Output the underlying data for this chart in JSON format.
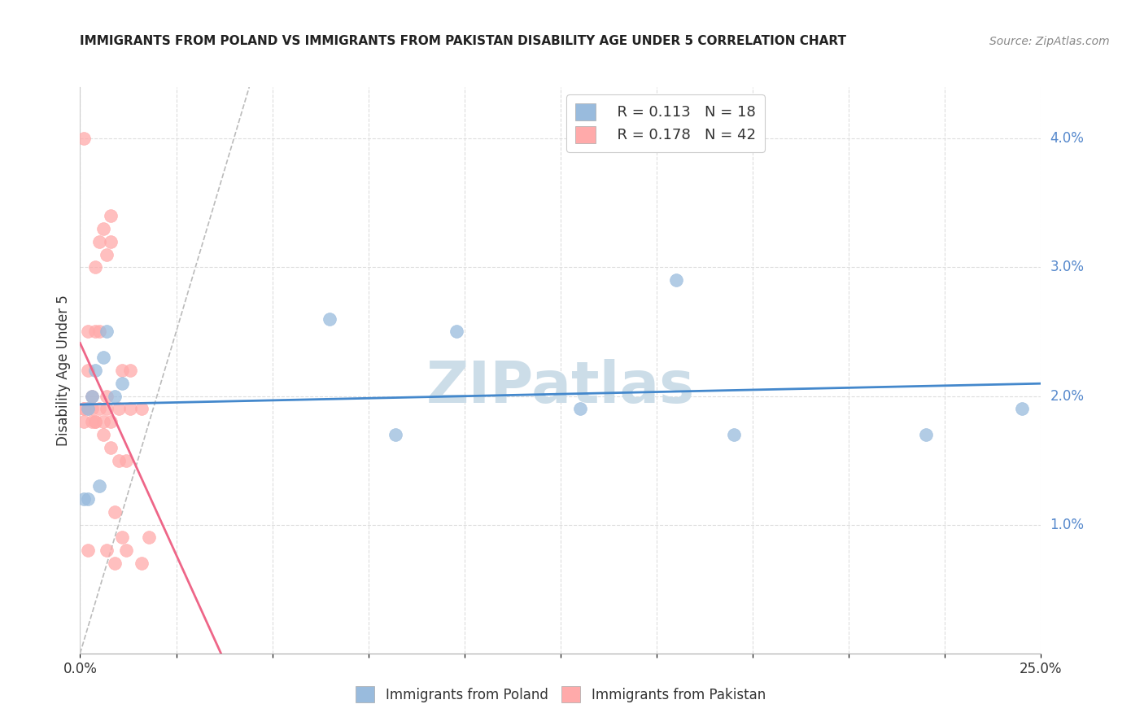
{
  "title": "IMMIGRANTS FROM POLAND VS IMMIGRANTS FROM PAKISTAN DISABILITY AGE UNDER 5 CORRELATION CHART",
  "source": "Source: ZipAtlas.com",
  "ylabel": "Disability Age Under 5",
  "xlim": [
    0.0,
    0.25
  ],
  "ylim": [
    0.0,
    0.044
  ],
  "poland_color": "#99BBDD",
  "pakistan_color": "#FFAAAA",
  "poland_R": 0.113,
  "poland_N": 18,
  "pakistan_R": 0.178,
  "pakistan_N": 42,
  "legend_label_poland": "Immigrants from Poland",
  "legend_label_pakistan": "Immigrants from Pakistan",
  "poland_x": [
    0.001,
    0.002,
    0.002,
    0.003,
    0.004,
    0.006,
    0.007,
    0.009,
    0.011,
    0.065,
    0.082,
    0.098,
    0.13,
    0.155,
    0.22,
    0.245,
    0.17,
    0.005
  ],
  "poland_y": [
    0.012,
    0.019,
    0.012,
    0.02,
    0.022,
    0.023,
    0.025,
    0.02,
    0.021,
    0.026,
    0.017,
    0.025,
    0.019,
    0.029,
    0.017,
    0.019,
    0.017,
    0.013
  ],
  "pakistan_x": [
    0.001,
    0.001,
    0.001,
    0.001,
    0.002,
    0.002,
    0.002,
    0.002,
    0.003,
    0.003,
    0.003,
    0.004,
    0.004,
    0.004,
    0.004,
    0.005,
    0.005,
    0.005,
    0.006,
    0.006,
    0.006,
    0.007,
    0.007,
    0.007,
    0.007,
    0.008,
    0.008,
    0.008,
    0.008,
    0.009,
    0.009,
    0.01,
    0.01,
    0.011,
    0.011,
    0.012,
    0.012,
    0.013,
    0.013,
    0.016,
    0.016,
    0.018
  ],
  "pakistan_y": [
    0.018,
    0.019,
    0.04,
    0.019,
    0.019,
    0.025,
    0.022,
    0.008,
    0.019,
    0.018,
    0.02,
    0.018,
    0.025,
    0.03,
    0.018,
    0.025,
    0.019,
    0.032,
    0.017,
    0.018,
    0.033,
    0.031,
    0.019,
    0.02,
    0.008,
    0.034,
    0.032,
    0.018,
    0.016,
    0.011,
    0.007,
    0.019,
    0.015,
    0.022,
    0.009,
    0.015,
    0.008,
    0.019,
    0.022,
    0.007,
    0.019,
    0.009
  ],
  "diagonal_line_color": "#BBBBBB",
  "poland_line_color": "#4488CC",
  "pakistan_line_color": "#EE6688",
  "watermark_text": "ZIPatlas",
  "watermark_color": "#CCDDE8",
  "background_color": "#FFFFFF",
  "grid_color": "#DDDDDD",
  "ytick_color": "#5588CC",
  "title_color": "#222222",
  "source_color": "#888888"
}
